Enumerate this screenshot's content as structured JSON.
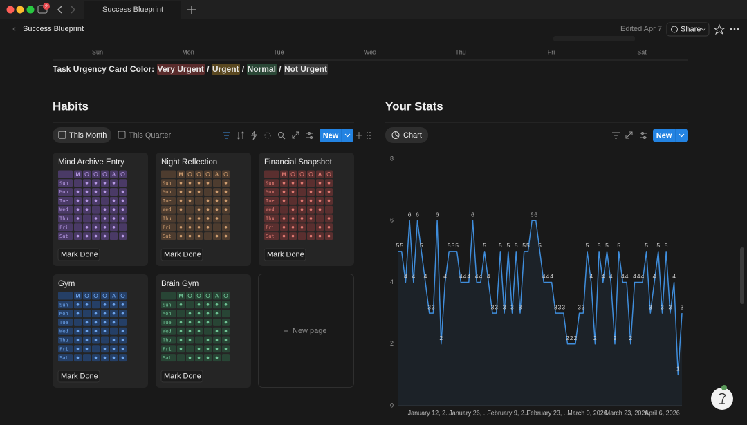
{
  "window": {
    "tab_title": "Success Blueprint",
    "badge": "2"
  },
  "topbar": {
    "title": "Success Blueprint",
    "edited": "Edited Apr 7",
    "share": "Share"
  },
  "calendar": {
    "weekdays": [
      "Sun",
      "Mon",
      "Tue",
      "Wed",
      "Thu",
      "Fri",
      "Sat"
    ]
  },
  "urgency": {
    "label": "Task Urgency Card Color:",
    "separator": "/",
    "levels": [
      {
        "text": "Very Urgent",
        "color": "#5a2c2c"
      },
      {
        "text": "Urgent",
        "color": "#5a4820"
      },
      {
        "text": "Normal",
        "color": "#2a4736"
      },
      {
        "text": "Not Urgent",
        "color": "#3a3a3a"
      }
    ]
  },
  "habits": {
    "title": "Habits",
    "views": [
      "This Month",
      "This Quarter"
    ],
    "new": "New",
    "grid_days": [
      "Sun",
      "Mon",
      "Tue",
      "Wed",
      "Thu",
      "Fri",
      "Sat"
    ],
    "grid_header": [
      "M",
      "A"
    ],
    "button": "Mark Done",
    "new_page": "New page",
    "cards": [
      {
        "title": "Mind Archive Entry",
        "color": "#4a3a66",
        "text_color": "#b99be6"
      },
      {
        "title": "Night Reflection",
        "color": "#4d3c2f",
        "text_color": "#d2a072"
      },
      {
        "title": "Financial Snapshot",
        "color": "#5a2f2f",
        "text_color": "#e07a72"
      },
      {
        "title": "Gym",
        "color": "#253f66",
        "text_color": "#6fa6ee"
      },
      {
        "title": "Brain Gym",
        "color": "#284535",
        "text_color": "#72c497"
      }
    ]
  },
  "stats": {
    "title": "Your Stats",
    "view": "Chart",
    "new": "New"
  },
  "chart_data": {
    "type": "line",
    "color": "#3f8ddb",
    "area": true,
    "data_labels": true,
    "grid": false,
    "ylim": [
      0,
      8
    ],
    "yticks": [
      0,
      2,
      4,
      6,
      8
    ],
    "categories": [
      null,
      null,
      null,
      null,
      null,
      null,
      null,
      null,
      "January 12, 2...",
      null,
      null,
      null,
      null,
      null,
      null,
      null,
      null,
      null,
      "January 26, ...",
      null,
      null,
      null,
      null,
      null,
      null,
      null,
      null,
      null,
      "February 9, 2...",
      null,
      null,
      null,
      null,
      null,
      null,
      null,
      null,
      null,
      "February 23, ...",
      null,
      null,
      null,
      null,
      null,
      null,
      null,
      null,
      null,
      "March 9, 2026",
      null,
      null,
      null,
      null,
      null,
      null,
      null,
      null,
      null,
      "March 23, 2026",
      null,
      null,
      null,
      null,
      null,
      null,
      null,
      null,
      "April 6, 2026",
      null,
      null,
      null,
      null,
      null
    ],
    "values": [
      5,
      5,
      4,
      6,
      4,
      6,
      5,
      4,
      3,
      3,
      6,
      2,
      4,
      5,
      5,
      5,
      4,
      4,
      4,
      6,
      4,
      4,
      5,
      4,
      3,
      3,
      5,
      3,
      5,
      3,
      5,
      3,
      5,
      5,
      6,
      6,
      5,
      4,
      4,
      4,
      3,
      3,
      3,
      2,
      2,
      2,
      3,
      3,
      5,
      4,
      2,
      5,
      4,
      5,
      4,
      2,
      5,
      4,
      4,
      2,
      4,
      4,
      4,
      5,
      3,
      4,
      5,
      3,
      5,
      3,
      4,
      1,
      3
    ]
  }
}
